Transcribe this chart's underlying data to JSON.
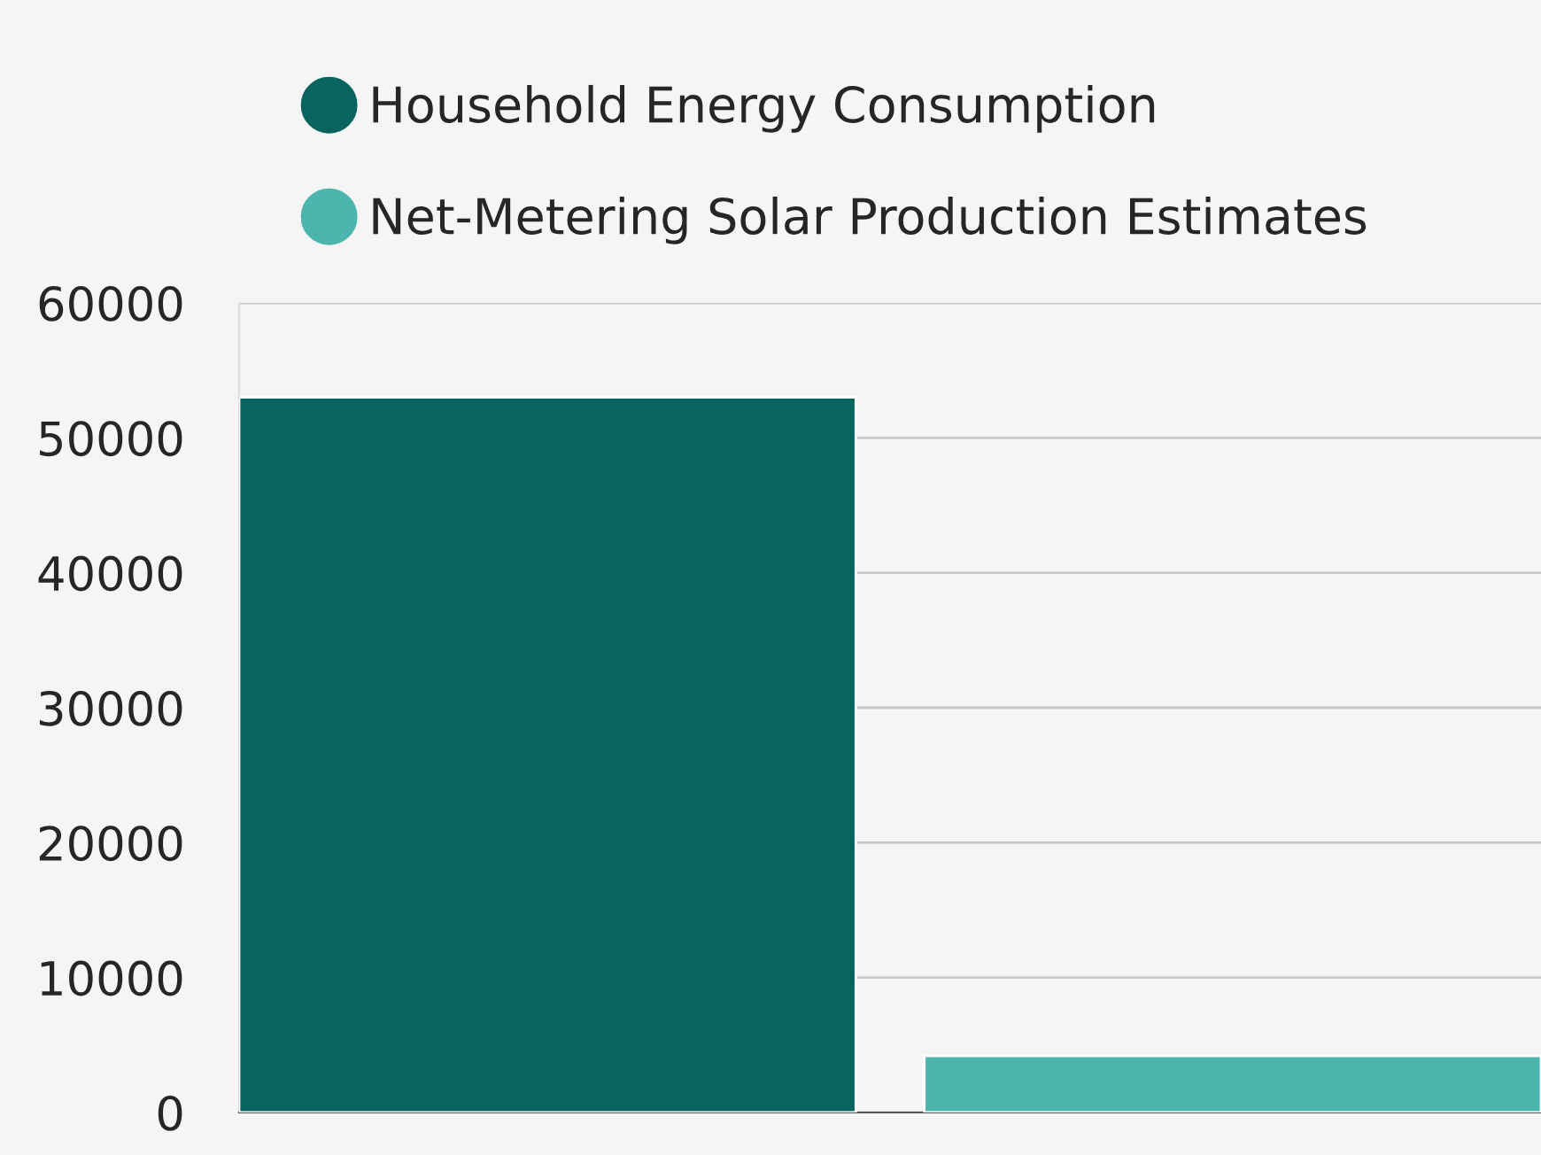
{
  "chart_data": {
    "type": "bar",
    "categories": [
      null,
      null
    ],
    "series": [
      {
        "name": "Household Energy Consumption",
        "color": "#096460",
        "values": [
          53000,
          null
        ]
      },
      {
        "name": "Net-Metering Solar Production Estimates",
        "color": "#4cb5ae",
        "values": [
          null,
          4200
        ]
      }
    ],
    "ylim": [
      0,
      60000
    ],
    "yticks": [
      0,
      10000,
      20000,
      30000,
      40000,
      50000,
      60000
    ],
    "grid": "y",
    "legend": "top left",
    "tick_labels": "y"
  }
}
